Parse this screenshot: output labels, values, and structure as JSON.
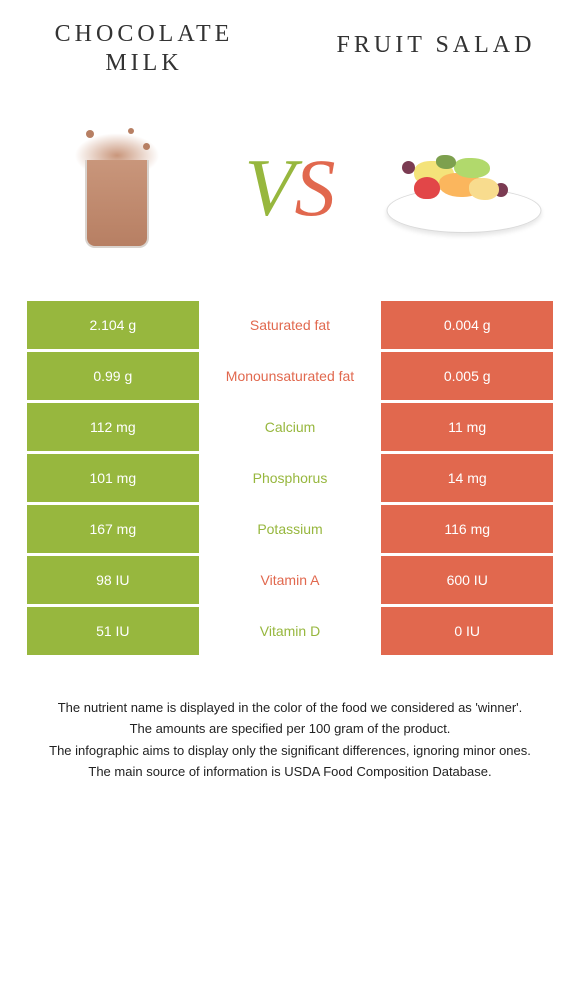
{
  "title_left_line1": "CHOCOLATE",
  "title_left_line2": "MILK",
  "title_right": "FRUIT SALAD",
  "vs_v": "V",
  "vs_s": "S",
  "colors": {
    "left": "#97b73e",
    "right": "#e1684e",
    "background": "#ffffff",
    "text": "#333333"
  },
  "nutrition": {
    "rows": [
      {
        "left": "2.104 g",
        "label": "Saturated fat",
        "right": "0.004 g",
        "winner": "right"
      },
      {
        "left": "0.99 g",
        "label": "Monounsaturated fat",
        "right": "0.005 g",
        "winner": "right"
      },
      {
        "left": "112 mg",
        "label": "Calcium",
        "right": "11 mg",
        "winner": "left"
      },
      {
        "left": "101 mg",
        "label": "Phosphorus",
        "right": "14 mg",
        "winner": "left"
      },
      {
        "left": "167 mg",
        "label": "Potassium",
        "right": "116 mg",
        "winner": "left"
      },
      {
        "left": "98 IU",
        "label": "Vitamin A",
        "right": "600 IU",
        "winner": "right"
      },
      {
        "left": "51 IU",
        "label": "Vitamin D",
        "right": "0 IU",
        "winner": "left"
      }
    ]
  },
  "footer": {
    "line1": "The nutrient name is displayed in the color of the food we considered as 'winner'.",
    "line2": "The amounts are specified per 100 gram of the product.",
    "line3": "The infographic aims to display only the significant differences, ignoring minor ones.",
    "line4": "The main source of information is USDA Food Composition Database."
  },
  "icons": {
    "left": "chocolate-milk-icon",
    "right": "fruit-salad-icon"
  }
}
